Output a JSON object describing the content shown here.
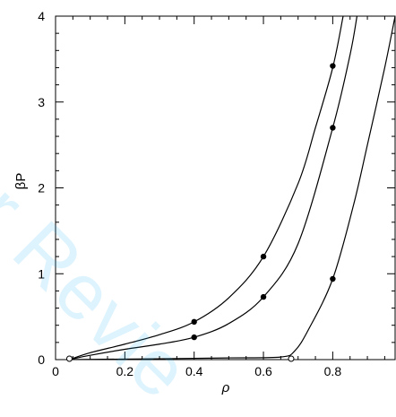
{
  "chart_data": {
    "type": "line",
    "title": "",
    "xlabel": "ρ",
    "ylabel": "βP",
    "xlim": [
      0,
      0.98
    ],
    "ylim": [
      0,
      4
    ],
    "x_ticks": [
      0,
      0.2,
      0.4,
      0.6,
      0.8
    ],
    "x_tick_labels": [
      "0",
      "0.2",
      "0.4",
      "0.6",
      "0.8"
    ],
    "y_ticks": [
      0,
      1,
      2,
      3,
      4
    ],
    "y_tick_labels": [
      "0",
      "1",
      "2",
      "3",
      "4"
    ],
    "grid": false,
    "series": [
      {
        "curve": [
          [
            0.04,
            0.0
          ],
          [
            0.1,
            0.08
          ],
          [
            0.2,
            0.18
          ],
          [
            0.3,
            0.29
          ],
          [
            0.4,
            0.44
          ],
          [
            0.5,
            0.72
          ],
          [
            0.6,
            1.2
          ],
          [
            0.7,
            2.05
          ],
          [
            0.75,
            2.7
          ],
          [
            0.8,
            3.4
          ],
          [
            0.83,
            4.0
          ]
        ],
        "points": [
          [
            0.4,
            0.44
          ],
          [
            0.6,
            1.2
          ],
          [
            0.8,
            3.42
          ]
        ]
      },
      {
        "curve": [
          [
            0.04,
            0.0
          ],
          [
            0.1,
            0.05
          ],
          [
            0.2,
            0.12
          ],
          [
            0.3,
            0.18
          ],
          [
            0.4,
            0.26
          ],
          [
            0.5,
            0.42
          ],
          [
            0.6,
            0.73
          ],
          [
            0.7,
            1.35
          ],
          [
            0.8,
            2.7
          ],
          [
            0.85,
            3.55
          ],
          [
            0.87,
            4.0
          ]
        ],
        "points": [
          [
            0.4,
            0.26
          ],
          [
            0.6,
            0.73
          ],
          [
            0.8,
            2.7
          ]
        ]
      },
      {
        "curve": [
          [
            0.04,
            0.0
          ],
          [
            0.3,
            0.01
          ],
          [
            0.5,
            0.02
          ],
          [
            0.65,
            0.03
          ],
          [
            0.69,
            0.1
          ],
          [
            0.73,
            0.35
          ],
          [
            0.8,
            0.94
          ],
          [
            0.86,
            1.8
          ],
          [
            0.9,
            2.5
          ],
          [
            0.95,
            3.4
          ],
          [
            0.98,
            4.0
          ]
        ],
        "points": [
          [
            0.8,
            0.94
          ]
        ]
      }
    ],
    "open_points": [
      [
        0.04,
        0.0
      ],
      [
        0.68,
        0.0
      ]
    ]
  },
  "watermark": "er Revie",
  "colors": {
    "axis": "#000000",
    "line": "#000000",
    "watermark": "#35b7f3"
  }
}
